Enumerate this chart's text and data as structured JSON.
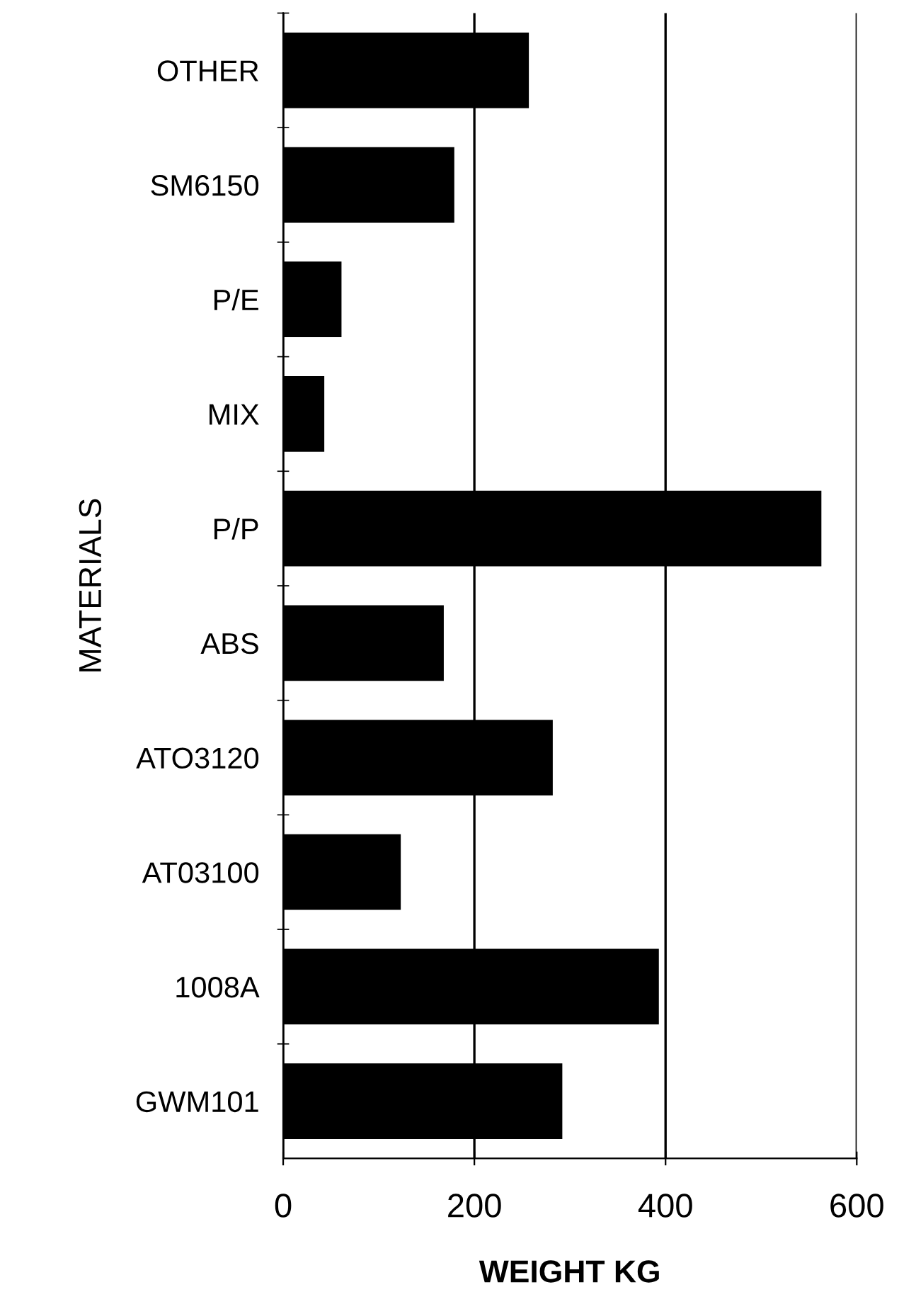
{
  "chart_data": {
    "type": "bar",
    "orientation": "horizontal",
    "xlabel": "WEIGHT KG",
    "ylabel": "MATERIALS",
    "categories": [
      "OTHER",
      "SM6150",
      "P/E",
      "MIX",
      "P/P",
      "ABS",
      "ATO3120",
      "AT03100",
      "1008A",
      "GWM101"
    ],
    "values": [
      257,
      179,
      61,
      43,
      563,
      168,
      282,
      123,
      393,
      292
    ],
    "color": "#000000",
    "xlim": [
      0,
      600
    ],
    "xticks": [
      0,
      200,
      400,
      600
    ],
    "grid": "x",
    "legend": false
  }
}
